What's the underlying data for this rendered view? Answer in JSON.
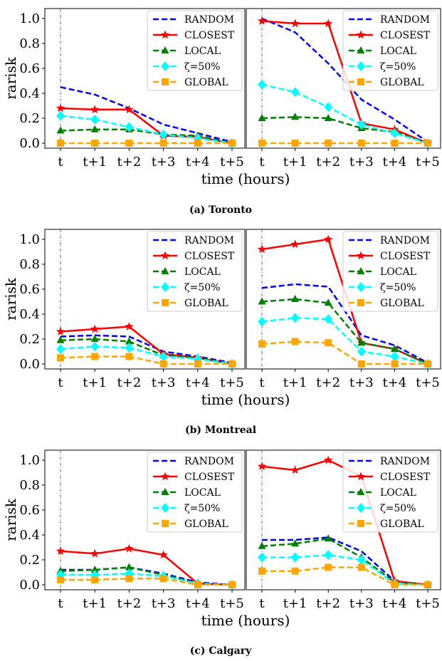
{
  "colors": {
    "RANDOM": "#0000ff",
    "CLOSEST": "#ff0000",
    "LOCAL": "#008000",
    "zeta50": "#00ffff",
    "GLOBAL": "#ffa500"
  },
  "chart_data": [
    {
      "type": "line",
      "caption": "(a) Toronto",
      "xlabel": "time (hours)",
      "ylabel": "rarisk",
      "categories": [
        "t",
        "t+1",
        "t+2",
        "t+3",
        "t+4",
        "t+5"
      ],
      "ylim": [
        -0.04,
        1.08
      ],
      "yticks": [
        "0.0",
        "0.2",
        "0.4",
        "0.6",
        "0.8",
        "1.0"
      ],
      "legend_position": "top-right",
      "panels": [
        {
          "series": [
            {
              "name": "RANDOM",
              "values": [
                0.45,
                0.39,
                0.28,
                0.15,
                0.08,
                0.01
              ]
            },
            {
              "name": "CLOSEST",
              "values": [
                0.28,
                0.27,
                0.27,
                0.06,
                0.05,
                0.0
              ]
            },
            {
              "name": "LOCAL",
              "values": [
                0.1,
                0.11,
                0.11,
                0.07,
                0.06,
                0.0
              ]
            },
            {
              "name": "ζ=50%",
              "values": [
                0.22,
                0.19,
                0.13,
                0.07,
                0.04,
                0.0
              ]
            },
            {
              "name": "GLOBAL",
              "values": [
                0.0,
                0.0,
                0.0,
                0.0,
                0.0,
                0.0
              ]
            }
          ]
        },
        {
          "series": [
            {
              "name": "RANDOM",
              "values": [
                1.0,
                0.89,
                0.64,
                0.35,
                0.19,
                0.01
              ]
            },
            {
              "name": "CLOSEST",
              "values": [
                0.98,
                0.96,
                0.96,
                0.16,
                0.11,
                0.0
              ]
            },
            {
              "name": "LOCAL",
              "values": [
                0.2,
                0.21,
                0.2,
                0.12,
                0.09,
                0.0
              ]
            },
            {
              "name": "ζ=50%",
              "values": [
                0.47,
                0.41,
                0.29,
                0.15,
                0.08,
                0.0
              ]
            },
            {
              "name": "GLOBAL",
              "values": [
                0.0,
                0.0,
                0.0,
                0.0,
                0.0,
                0.0
              ]
            }
          ]
        }
      ]
    },
    {
      "type": "line",
      "caption": "(b) Montreal",
      "xlabel": "time (hours)",
      "ylabel": "rarisk",
      "categories": [
        "t",
        "t+1",
        "t+2",
        "t+3",
        "t+4",
        "t+5"
      ],
      "ylim": [
        -0.04,
        1.08
      ],
      "yticks": [
        "0.0",
        "0.2",
        "0.4",
        "0.6",
        "0.8",
        "1.0"
      ],
      "legend_position": "top-right",
      "panels": [
        {
          "series": [
            {
              "name": "RANDOM",
              "values": [
                0.22,
                0.23,
                0.22,
                0.1,
                0.06,
                0.01
              ]
            },
            {
              "name": "CLOSEST",
              "values": [
                0.26,
                0.28,
                0.3,
                0.08,
                0.05,
                0.0
              ]
            },
            {
              "name": "LOCAL",
              "values": [
                0.19,
                0.2,
                0.18,
                0.07,
                0.05,
                0.0
              ]
            },
            {
              "name": "ζ=50%",
              "values": [
                0.12,
                0.14,
                0.13,
                0.06,
                0.04,
                0.0
              ]
            },
            {
              "name": "GLOBAL",
              "values": [
                0.05,
                0.06,
                0.06,
                0.0,
                0.0,
                0.0
              ]
            }
          ]
        },
        {
          "series": [
            {
              "name": "RANDOM",
              "values": [
                0.61,
                0.64,
                0.62,
                0.23,
                0.15,
                0.01
              ]
            },
            {
              "name": "CLOSEST",
              "values": [
                0.92,
                0.96,
                1.0,
                0.17,
                0.12,
                0.0
              ]
            },
            {
              "name": "LOCAL",
              "values": [
                0.5,
                0.52,
                0.49,
                0.17,
                0.12,
                0.0
              ]
            },
            {
              "name": "ζ=50%",
              "values": [
                0.34,
                0.37,
                0.36,
                0.1,
                0.06,
                0.0
              ]
            },
            {
              "name": "GLOBAL",
              "values": [
                0.16,
                0.18,
                0.17,
                0.0,
                0.0,
                0.0
              ]
            }
          ]
        }
      ]
    },
    {
      "type": "line",
      "caption": "(c) Calgary",
      "xlabel": "time (hours)",
      "ylabel": "rarisk",
      "categories": [
        "t",
        "t+1",
        "t+2",
        "t+3",
        "t+4",
        "t+5"
      ],
      "ylim": [
        -0.04,
        1.08
      ],
      "yticks": [
        "0.0",
        "0.2",
        "0.4",
        "0.6",
        "0.8",
        "1.0"
      ],
      "legend_position": "top-right",
      "panels": [
        {
          "series": [
            {
              "name": "RANDOM",
              "values": [
                0.12,
                0.12,
                0.14,
                0.09,
                0.02,
                0.0
              ]
            },
            {
              "name": "CLOSEST",
              "values": [
                0.27,
                0.25,
                0.29,
                0.24,
                0.01,
                0.0
              ]
            },
            {
              "name": "LOCAL",
              "values": [
                0.11,
                0.12,
                0.14,
                0.08,
                0.01,
                0.0
              ]
            },
            {
              "name": "ζ=50%",
              "values": [
                0.08,
                0.08,
                0.09,
                0.07,
                0.01,
                0.0
              ]
            },
            {
              "name": "GLOBAL",
              "values": [
                0.04,
                0.04,
                0.05,
                0.05,
                0.0,
                0.0
              ]
            }
          ]
        },
        {
          "series": [
            {
              "name": "RANDOM",
              "values": [
                0.36,
                0.36,
                0.38,
                0.27,
                0.03,
                0.0
              ]
            },
            {
              "name": "CLOSEST",
              "values": [
                0.95,
                0.92,
                1.0,
                0.87,
                0.03,
                0.0
              ]
            },
            {
              "name": "LOCAL",
              "values": [
                0.31,
                0.33,
                0.37,
                0.22,
                0.02,
                0.0
              ]
            },
            {
              "name": "ζ=50%",
              "values": [
                0.22,
                0.22,
                0.24,
                0.2,
                0.01,
                0.0
              ]
            },
            {
              "name": "GLOBAL",
              "values": [
                0.11,
                0.11,
                0.14,
                0.14,
                0.0,
                0.0
              ]
            }
          ]
        }
      ]
    }
  ]
}
